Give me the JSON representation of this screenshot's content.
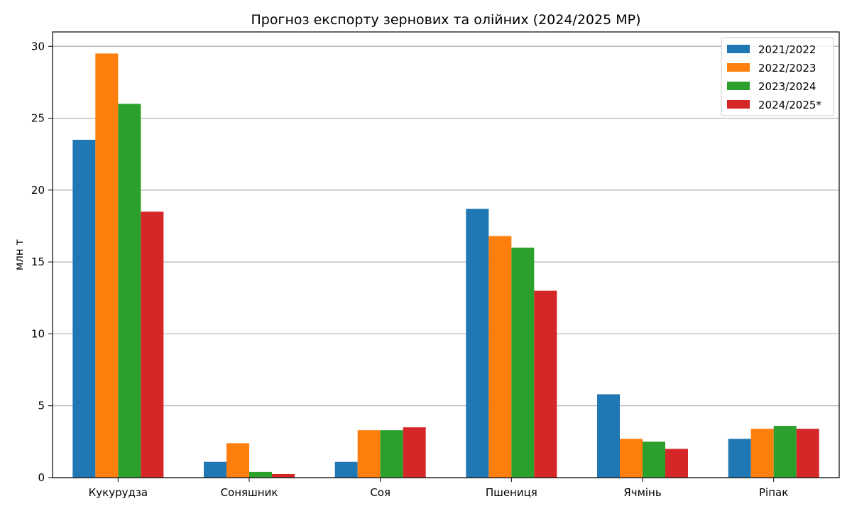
{
  "chart_data": {
    "type": "bar",
    "title": "Прогноз експорту зернових та олійних (2024/2025 МР)",
    "xlabel": "",
    "ylabel": "млн т",
    "ylim": [
      0,
      31
    ],
    "yticks": [
      "0",
      "5",
      "10",
      "15",
      "20",
      "25",
      "30"
    ],
    "grid": "y",
    "legend_position": "top-right",
    "categories": [
      "Кукурудза",
      "Соняшник",
      "Соя",
      "Пшениця",
      "Ячмінь",
      "Ріпак"
    ],
    "series": [
      {
        "name": "2021/2022",
        "color": "#1f77b4",
        "values": [
          23.5,
          1.1,
          1.1,
          18.7,
          5.8,
          2.7
        ]
      },
      {
        "name": "2022/2023",
        "color": "#ff7f0e",
        "values": [
          29.5,
          2.4,
          3.3,
          16.8,
          2.7,
          3.4
        ]
      },
      {
        "name": "2023/2024",
        "color": "#2ca02c",
        "values": [
          26.0,
          0.4,
          3.3,
          16.0,
          2.5,
          3.6
        ]
      },
      {
        "name": "2024/2025*",
        "color": "#d62728",
        "values": [
          18.5,
          0.25,
          3.5,
          13.0,
          2.0,
          3.4
        ]
      }
    ]
  }
}
